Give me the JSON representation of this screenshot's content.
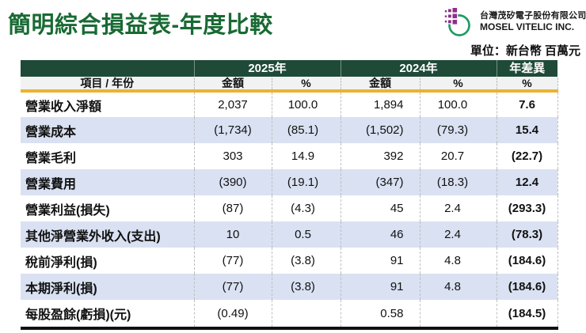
{
  "header": {
    "title": "簡明綜合損益表-年度比較",
    "company_zh": "台灣茂矽電子股份有限公司",
    "company_en": "MOSEL VITELIC INC.",
    "unit_label": "單位：新台幣 百萬元"
  },
  "table": {
    "col_groups": [
      {
        "label": "",
        "span": 1
      },
      {
        "label": "2025年",
        "span": 2
      },
      {
        "label": "2024年",
        "span": 2
      },
      {
        "label": "年差異",
        "span": 1
      }
    ],
    "sub_headers": [
      "項目 / 年份",
      "金額",
      "%",
      "金額",
      "%",
      "%"
    ],
    "rows": [
      {
        "item": "營業收入淨額",
        "amt2025": "2,037",
        "pct2025": "100.0",
        "amt2024": "1,894",
        "pct2024": "100.0",
        "diff": "7.6"
      },
      {
        "item": "營業成本",
        "amt2025": "(1,734)",
        "pct2025": "(85.1)",
        "amt2024": "(1,502)",
        "pct2024": "(79.3)",
        "diff": "15.4"
      },
      {
        "item": "營業毛利",
        "amt2025": "303",
        "pct2025": "14.9",
        "amt2024": "392",
        "pct2024": "20.7",
        "diff": "(22.7)"
      },
      {
        "item": "營業費用",
        "amt2025": "(390)",
        "pct2025": "(19.1)",
        "amt2024": "(347)",
        "pct2024": "(18.3)",
        "diff": "12.4"
      },
      {
        "item": "營業利益(損失)",
        "amt2025": "(87)",
        "pct2025": "(4.3)",
        "amt2024": "45",
        "pct2024": "2.4",
        "diff": "(293.3)"
      },
      {
        "item": "其他淨營業外收入(支出)",
        "amt2025": "10",
        "pct2025": "0.5",
        "amt2024": "46",
        "pct2024": "2.4",
        "diff": "(78.3)"
      },
      {
        "item": "稅前淨利(損)",
        "amt2025": "(77)",
        "pct2025": "(3.8)",
        "amt2024": "91",
        "pct2024": "4.8",
        "diff": "(184.6)"
      },
      {
        "item": "本期淨利(損)",
        "amt2025": "(77)",
        "pct2025": "(3.8)",
        "amt2024": "91",
        "pct2024": "4.8",
        "diff": "(184.6)"
      },
      {
        "item": "每股盈餘(虧損)(元)",
        "amt2025": "(0.49)",
        "pct2025": "",
        "amt2024": "0.58",
        "pct2024": "",
        "diff": "(184.5)"
      }
    ]
  },
  "colors": {
    "title_green": "#186A33",
    "header_band_green": "#1F4A38",
    "accent_gold": "#ECB230",
    "row_alt_blue": "#D9E1F2",
    "subheader_gray": "#F2F2F2",
    "table_bottom_border": "#111111",
    "logo_purple": "#8E2F8C",
    "logo_circle_green": "#1E9C64"
  }
}
